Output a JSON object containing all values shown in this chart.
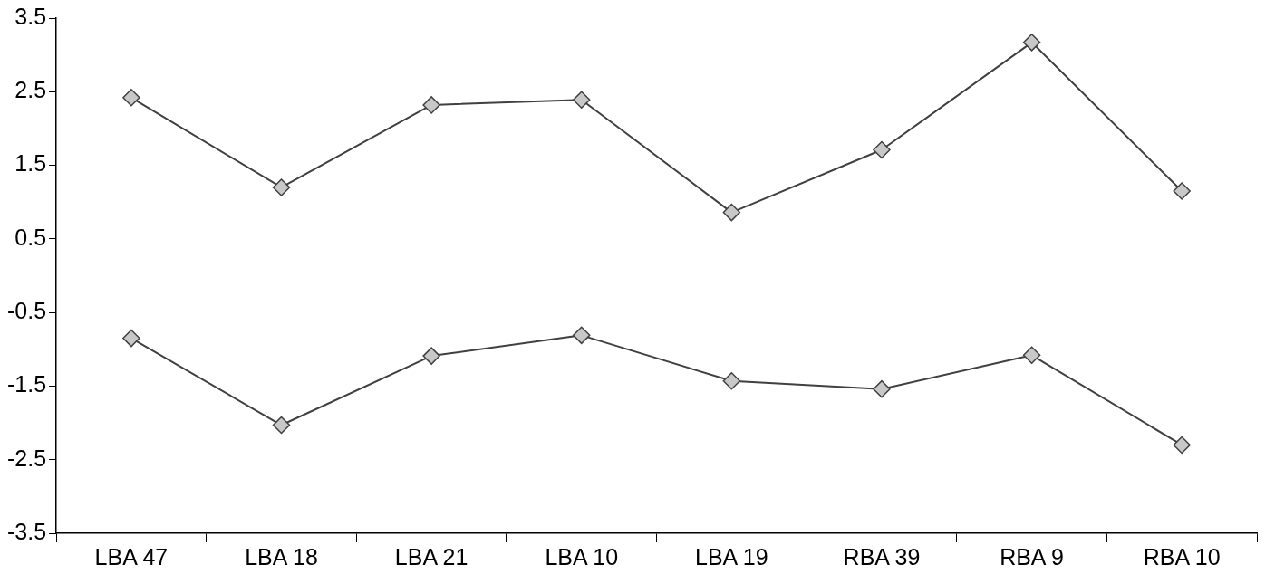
{
  "chart_data": {
    "type": "line",
    "categories": [
      "LBA 47",
      "LBA 18",
      "LBA 21",
      "LBA 10",
      "LBA 19",
      "RBA 39",
      "RBA 9",
      "RBA 10"
    ],
    "series": [
      {
        "color": "#404040",
        "values": [
          2.42,
          1.2,
          2.32,
          2.39,
          0.86,
          1.71,
          3.17,
          1.15
        ]
      },
      {
        "color": "#404040",
        "values": [
          -0.85,
          -2.03,
          -1.09,
          -0.81,
          -1.43,
          -1.54,
          -1.08,
          -2.3
        ]
      }
    ],
    "ylim": [
      -3.5,
      3.5
    ],
    "yticks": [
      -3.5,
      -2.5,
      -1.5,
      -0.5,
      0.5,
      1.5,
      2.5,
      3.5
    ],
    "grid": false,
    "legend": false,
    "marker": "diamond",
    "line_style": "solid"
  }
}
